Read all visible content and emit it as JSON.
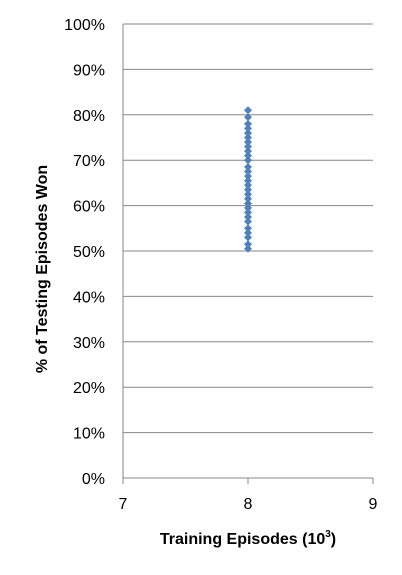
{
  "chart_data": {
    "type": "scatter",
    "title": "",
    "xlabel": "Training Episodes (10",
    "xlabel_superscript": "3",
    "xlabel_suffix": ")",
    "ylabel": "% of Testing Episodes Won",
    "xlim": [
      7,
      9
    ],
    "ylim": [
      0,
      100
    ],
    "x_ticks": [
      7,
      8,
      9
    ],
    "x_tick_labels": [
      "7",
      "8",
      "9"
    ],
    "y_ticks": [
      0,
      10,
      20,
      30,
      40,
      50,
      60,
      70,
      80,
      90,
      100
    ],
    "y_tick_labels": [
      "0%",
      "10%",
      "20%",
      "30%",
      "40%",
      "50%",
      "60%",
      "70%",
      "80%",
      "90%",
      "100%"
    ],
    "grid": {
      "horizontal": true,
      "vertical": false
    },
    "legend": "none",
    "marker": {
      "shape": "diamond",
      "color": "#4F81BD"
    },
    "gridline_color": "#878787",
    "series": [
      {
        "points": [
          {
            "x": 8,
            "y": 50.5
          },
          {
            "x": 8,
            "y": 51.5
          },
          {
            "x": 8,
            "y": 53
          },
          {
            "x": 8,
            "y": 54
          },
          {
            "x": 8,
            "y": 55
          },
          {
            "x": 8,
            "y": 56.5
          },
          {
            "x": 8,
            "y": 57.5
          },
          {
            "x": 8,
            "y": 58.5
          },
          {
            "x": 8,
            "y": 59.5
          },
          {
            "x": 8,
            "y": 60.5
          },
          {
            "x": 8,
            "y": 61.5
          },
          {
            "x": 8,
            "y": 62.5
          },
          {
            "x": 8,
            "y": 63.5
          },
          {
            "x": 8,
            "y": 64.5
          },
          {
            "x": 8,
            "y": 65.5
          },
          {
            "x": 8,
            "y": 66.5
          },
          {
            "x": 8,
            "y": 67.5
          },
          {
            "x": 8,
            "y": 68.5
          },
          {
            "x": 8,
            "y": 70
          },
          {
            "x": 8,
            "y": 71
          },
          {
            "x": 8,
            "y": 72
          },
          {
            "x": 8,
            "y": 73
          },
          {
            "x": 8,
            "y": 74
          },
          {
            "x": 8,
            "y": 75
          },
          {
            "x": 8,
            "y": 76
          },
          {
            "x": 8,
            "y": 77
          },
          {
            "x": 8,
            "y": 78
          },
          {
            "x": 8,
            "y": 79.5
          },
          {
            "x": 8,
            "y": 81
          }
        ]
      }
    ]
  }
}
